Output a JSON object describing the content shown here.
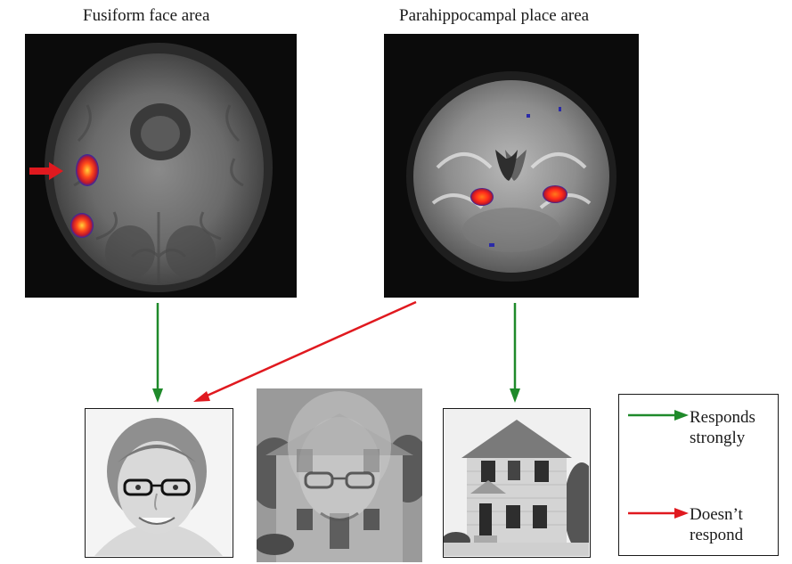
{
  "titles": {
    "left": "Fusiform face area",
    "right": "Parahippocampal place area"
  },
  "legend": {
    "strong_line1": "Responds",
    "strong_line2": "strongly",
    "none_line1": "Doesn’t",
    "none_line2": "respond"
  },
  "colors": {
    "responds_strongly": "#1f8a2a",
    "doesnt_respond": "#e0191f",
    "activation_hot": "#ff3b1a",
    "activation_edge": "#2a2aa8"
  },
  "stimuli": [
    "face",
    "face-house-overlay",
    "house"
  ]
}
